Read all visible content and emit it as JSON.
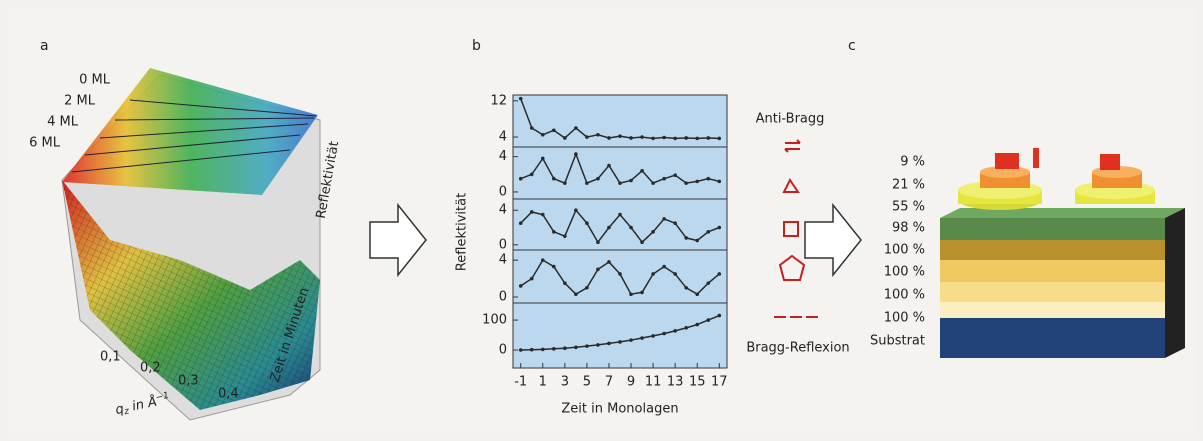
{
  "panel_a": {
    "label": "a",
    "layer_labels": [
      "0 ML",
      "2 ML",
      "4 ML",
      "6 ML"
    ],
    "reflectivity_label": "Reflektivität",
    "time_label": "Zeit in Minuten",
    "q_ticks": [
      "0,1",
      "0,2",
      "0,3",
      "0,4"
    ],
    "q_label": {
      "symbol": "q",
      "subscript": "z",
      "unit": " in Å",
      "exponent": "−1"
    }
  },
  "panel_b": {
    "label": "b",
    "y_label": "Reflektivität",
    "x_label": "Zeit in Monolagen",
    "top_label": "Anti-Bragg",
    "bottom_label": "Bragg-Reflexion"
  },
  "chart_data": [
    {
      "type": "line",
      "color": "#2a2a2a",
      "background": "#bcd8ef",
      "x": [
        -1,
        0,
        1,
        2,
        3,
        4,
        5,
        6,
        7,
        8,
        9,
        10,
        11,
        12,
        13,
        14,
        15,
        16,
        17
      ],
      "xlim": [
        -1.7,
        17.7
      ],
      "values": [
        12.5,
        6,
        4.5,
        5.5,
        3.8,
        6,
        4,
        4.5,
        3.8,
        4.2,
        3.8,
        4,
        3.7,
        3.9,
        3.7,
        3.8,
        3.7,
        3.8,
        3.7
      ],
      "ylim": [
        1.8,
        13.3
      ],
      "yticks": [
        4,
        12
      ]
    },
    {
      "type": "line",
      "color": "#2a2a2a",
      "background": "#bcd8ef",
      "x": [
        -1,
        0,
        1,
        2,
        3,
        4,
        5,
        6,
        7,
        8,
        9,
        10,
        11,
        12,
        13,
        14,
        15,
        16,
        17
      ],
      "xlim": [
        -1.7,
        17.7
      ],
      "values": [
        1.5,
        2,
        3.8,
        1.5,
        1,
        4.3,
        1,
        1.5,
        3,
        1,
        1.3,
        2.4,
        1,
        1.5,
        1.9,
        1,
        1.2,
        1.5,
        1.2
      ],
      "ylim": [
        -0.8,
        5.1
      ],
      "yticks": [
        0,
        4
      ]
    },
    {
      "type": "line",
      "color": "#2a2a2a",
      "background": "#bcd8ef",
      "x": [
        -1,
        0,
        1,
        2,
        3,
        4,
        5,
        6,
        7,
        8,
        9,
        10,
        11,
        12,
        13,
        14,
        15,
        16,
        17
      ],
      "xlim": [
        -1.7,
        17.7
      ],
      "values": [
        2.5,
        3.8,
        3.5,
        1.5,
        1,
        4,
        2.5,
        0.3,
        2,
        3.5,
        2,
        0.3,
        1.5,
        3,
        2.5,
        0.8,
        0.5,
        1.5,
        2
      ],
      "ylim": [
        -0.6,
        5.3
      ],
      "yticks": [
        0,
        4
      ]
    },
    {
      "type": "line",
      "color": "#2a2a2a",
      "background": "#bcd8ef",
      "x": [
        -1,
        0,
        1,
        2,
        3,
        4,
        5,
        6,
        7,
        8,
        9,
        10,
        11,
        12,
        13,
        14,
        15,
        16,
        17
      ],
      "xlim": [
        -1.7,
        17.7
      ],
      "values": [
        1.2,
        2,
        4,
        3.3,
        1.5,
        0.3,
        1,
        3,
        3.8,
        2.5,
        0.3,
        0.5,
        2.5,
        3.3,
        2.5,
        1,
        0.3,
        1.5,
        2.5
      ],
      "ylim": [
        -0.65,
        5.1
      ],
      "yticks": [
        0,
        4
      ]
    },
    {
      "type": "line",
      "color": "#2a2a2a",
      "background": "#bcd8ef",
      "x": [
        -1,
        0,
        1,
        2,
        3,
        4,
        5,
        6,
        7,
        8,
        9,
        10,
        11,
        12,
        13,
        14,
        15,
        16,
        17
      ],
      "xlim": [
        -1.7,
        17.7
      ],
      "values": [
        0,
        1,
        2,
        4,
        6,
        9,
        13,
        17,
        22,
        27,
        33,
        40,
        47,
        55,
        64,
        74,
        85,
        100,
        115
      ],
      "ylim": [
        -60,
        157
      ],
      "yticks": [
        0,
        100
      ],
      "xticks": [
        -1,
        1,
        3,
        5,
        7,
        9,
        11,
        13,
        15,
        17
      ]
    }
  ],
  "panel_c": {
    "label": "c",
    "coverages": [
      "9 %",
      "21 %",
      "55 %",
      "98 %",
      "100 %",
      "100 %",
      "100 %",
      "100 %"
    ],
    "substrate": "Substrat"
  }
}
